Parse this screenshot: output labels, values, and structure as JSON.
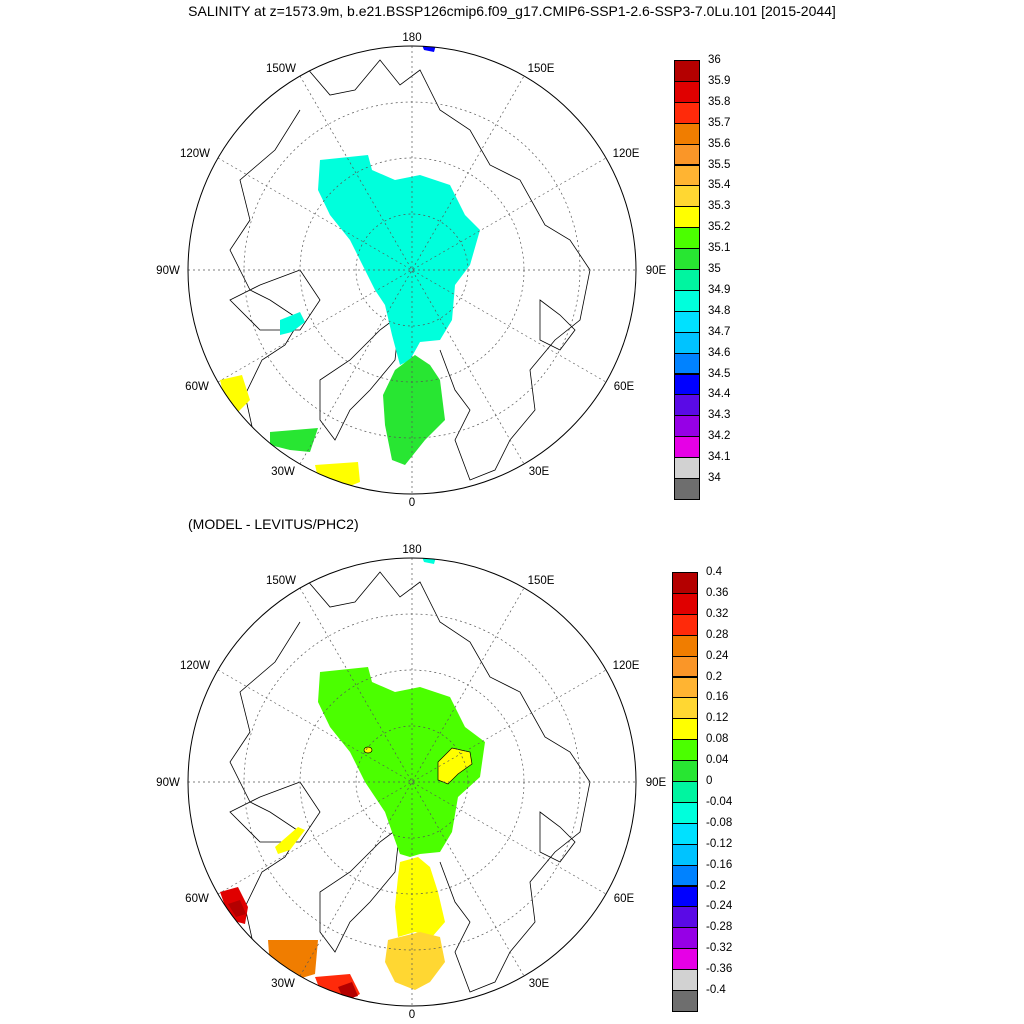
{
  "title": "SALINITY at z=1573.9m, b.e21.BSSP126cmip6.f09_g17.CMIP6-SSP1-2.6-SSP3-7.0Lu.101 [2015-2044]",
  "subtitle": "(MODEL - LEVITUS/PHC2)",
  "longitude_labels": {
    "top": "180",
    "bottom": "0",
    "left": "90W",
    "right": "90E",
    "upper_left_1": "150W",
    "upper_left_2": "120W",
    "lower_left_1": "60W",
    "lower_left_2": "30W",
    "upper_right_1": "150E",
    "upper_right_2": "120E",
    "lower_right_1": "60E",
    "lower_right_2": "30E"
  },
  "panels": [
    {
      "id": "salinity",
      "colorbar": {
        "labels": [
          "36",
          "35.9",
          "35.8",
          "35.7",
          "35.6",
          "35.5",
          "35.4",
          "35.3",
          "35.2",
          "35.1",
          "35",
          "34.9",
          "34.8",
          "34.7",
          "34.6",
          "34.5",
          "34.4",
          "34.3",
          "34.2",
          "34.1",
          "34"
        ],
        "colors": [
          "#b40000",
          "#e00000",
          "#ff2a0a",
          "#f07d00",
          "#fa9628",
          "#ffb432",
          "#ffd732",
          "#ffff00",
          "#4bff00",
          "#28e632",
          "#00f5a0",
          "#00ffdc",
          "#00e1ff",
          "#00c3ff",
          "#0082ff",
          "#0000ff",
          "#5a0ae6",
          "#9600e6",
          "#e600e6",
          "#d2d2d2",
          "#6e6e6e"
        ]
      }
    },
    {
      "id": "difference",
      "colorbar": {
        "labels": [
          "0.4",
          "0.36",
          "0.32",
          "0.28",
          "0.24",
          "0.2",
          "0.16",
          "0.12",
          "0.08",
          "0.04",
          "0",
          "-0.04",
          "-0.08",
          "-0.12",
          "-0.16",
          "-0.2",
          "-0.24",
          "-0.28",
          "-0.32",
          "-0.36",
          "-0.4"
        ],
        "colors": [
          "#b40000",
          "#e00000",
          "#ff2a0a",
          "#f07d00",
          "#fa9628",
          "#ffb432",
          "#ffd732",
          "#ffff00",
          "#4bff00",
          "#28e632",
          "#00f5a0",
          "#00ffdc",
          "#00e1ff",
          "#00c3ff",
          "#0082ff",
          "#0000ff",
          "#5a0ae6",
          "#9600e6",
          "#e600e6",
          "#d2d2d2",
          "#6e6e6e"
        ]
      }
    }
  ]
}
